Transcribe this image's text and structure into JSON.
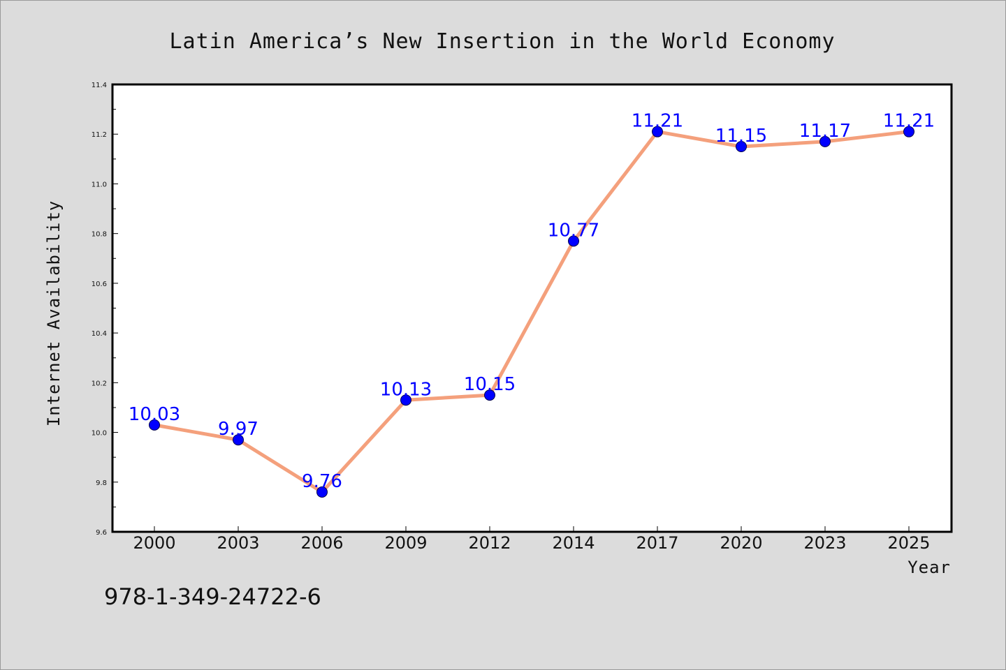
{
  "chart_data": {
    "type": "line",
    "title": "Latin America’s New Insertion in the World Economy",
    "xlabel": "Year",
    "ylabel": "Internet Availability",
    "categories": [
      "2000",
      "2003",
      "2006",
      "2009",
      "2012",
      "2014",
      "2017",
      "2020",
      "2023",
      "2025"
    ],
    "series": [
      {
        "values": [
          10.03,
          9.97,
          9.76,
          10.13,
          10.15,
          10.77,
          11.21,
          11.15,
          11.17,
          11.21
        ],
        "labels": [
          "10.03",
          "9.97",
          "9.76",
          "10.13",
          "10.15",
          "10.77",
          "11.21",
          "11.15",
          "11.17",
          "11.21"
        ],
        "line_color": "#f4a07c",
        "marker_color": "#0000ff"
      }
    ],
    "ylim": [
      9.6,
      11.4
    ],
    "yticks": [
      "9.6",
      "9.8",
      "10.0",
      "10.2",
      "10.4",
      "10.6",
      "10.8",
      "11.0",
      "11.2",
      "11.4"
    ],
    "grid": false,
    "legend": "none"
  },
  "footer": {
    "isbn": "978-1-349-24722-6"
  },
  "colors": {
    "background": "#dcdcdc",
    "plot_area": "#ffffff",
    "label_color": "#0000ff"
  }
}
